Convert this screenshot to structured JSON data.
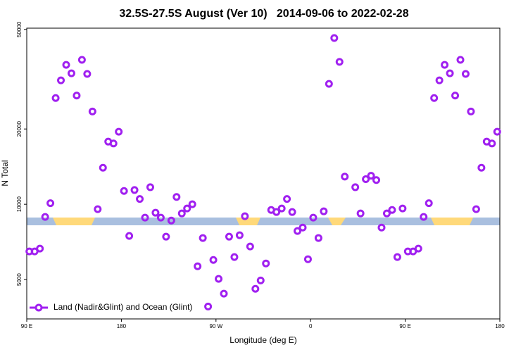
{
  "chart_data": {
    "type": "scatter",
    "title": "32.5S-27.5S August (Ver 10)   2014-09-06 to 2022-02-28",
    "x_label": "Longitude (deg E)",
    "y_label": "N Total",
    "log_y": true,
    "legend": "lower left",
    "xlim": [
      90,
      540
    ],
    "xticks": [
      {
        "value": 90,
        "label": "90 E"
      },
      {
        "value": 180,
        "label": "180"
      },
      {
        "value": 270,
        "label": "90 W"
      },
      {
        "value": 360,
        "label": "0"
      },
      {
        "value": 450,
        "label": "90 E"
      },
      {
        "value": 540,
        "label": "180"
      }
    ],
    "ylim": [
      3480,
      50600
    ],
    "yticks": [
      5000,
      10000,
      20000,
      50000
    ],
    "series": [
      {
        "name": "Land (Nadir&Glint) and Ocean (Glint)",
        "color": "#a020f0",
        "x": [
          92.5,
          97.5,
          102.5,
          107.5,
          112.5,
          117.5,
          122.5,
          127.5,
          132.5,
          137.5,
          142.5,
          147.5,
          152.5,
          157.5,
          162.5,
          167.5,
          172.5,
          177.5,
          182.5,
          187.5,
          192.5,
          197.5,
          202.5,
          207.5,
          212.5,
          217.5,
          222.5,
          227.5,
          232.5,
          237.5,
          242.5,
          247.5,
          252.5,
          257.5,
          262.5,
          267.5,
          272.5,
          277.5,
          282.5,
          287.5,
          292.5,
          297.5,
          302.5,
          307.5,
          312.5,
          317.5,
          322.5,
          327.5,
          332.5,
          337.5,
          342.5,
          347.5,
          352.5,
          357.5,
          362.5,
          367.5,
          372.5,
          377.5,
          382.5,
          387.5,
          392.5,
          402.5,
          407.5,
          412.5,
          417.5,
          422.5,
          427.5,
          432.5,
          437.5,
          442.5,
          447.5,
          452.5,
          457.5,
          462.5,
          467.5,
          472.5,
          477.5,
          482.5,
          487.5,
          492.5,
          497.5,
          502.5,
          507.5,
          512.5,
          517.5,
          522.5,
          527.5,
          532.5,
          537.5
        ],
        "values": [
          6480,
          6480,
          6650,
          8900,
          10100,
          26600,
          31300,
          36100,
          33400,
          27200,
          37800,
          33200,
          23500,
          9560,
          14000,
          17800,
          17500,
          19500,
          11300,
          7470,
          11400,
          10500,
          8840,
          11700,
          9250,
          8840,
          7420,
          8610,
          10700,
          9190,
          9620,
          10000,
          5650,
          7330,
          3900,
          5990,
          5030,
          4390,
          7420,
          6150,
          7520,
          8960,
          6780,
          4590,
          4960,
          5800,
          9490,
          9310,
          9620,
          10500,
          9310,
          7820,
          8070,
          6030,
          8840,
          7330,
          9370,
          30300,
          46200,
          37100,
          12900,
          11700,
          9190,
          12600,
          13000,
          12500,
          8070,
          9190,
          9490,
          6150,
          9620,
          6480,
          6480,
          6650,
          8900,
          10100,
          26600,
          31300,
          36100,
          33400,
          27200,
          37800,
          33200,
          23500,
          9560,
          14000,
          17800,
          17500,
          19500
        ]
      }
    ]
  }
}
